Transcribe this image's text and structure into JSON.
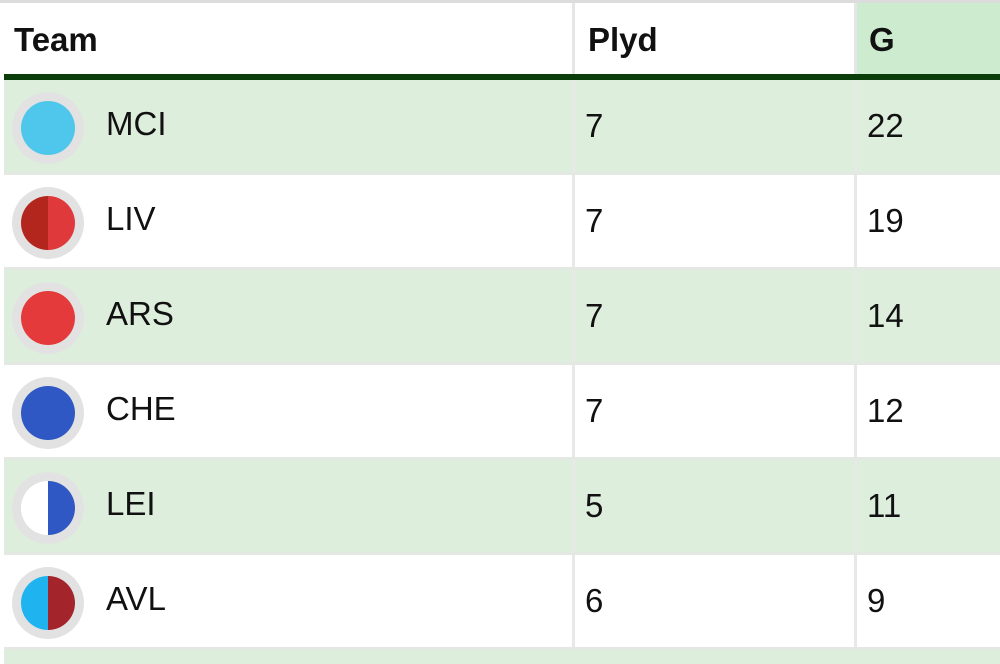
{
  "header": {
    "team": "Team",
    "played": "Plyd",
    "goals": "G"
  },
  "rows": [
    {
      "team": "MCI",
      "played": "7",
      "goals": "22",
      "crest_icon": "mci-crest-icon",
      "colors": [
        "#4fc6ec",
        "#4fc6ec"
      ]
    },
    {
      "team": "LIV",
      "played": "7",
      "goals": "19",
      "crest_icon": "liv-crest-icon",
      "colors": [
        "#b3261e",
        "#e0393b"
      ]
    },
    {
      "team": "ARS",
      "played": "7",
      "goals": "14",
      "crest_icon": "ars-crest-icon",
      "colors": [
        "#e53a3c",
        "#e53a3c"
      ]
    },
    {
      "team": "CHE",
      "played": "7",
      "goals": "12",
      "crest_icon": "che-crest-icon",
      "colors": [
        "#2f58c4",
        "#2f58c4"
      ]
    },
    {
      "team": "LEI",
      "played": "5",
      "goals": "11",
      "crest_icon": "lei-crest-icon",
      "colors": [
        "#ffffff",
        "#2f58c4"
      ]
    },
    {
      "team": "AVL",
      "played": "6",
      "goals": "9",
      "crest_icon": "avl-crest-icon",
      "colors": [
        "#1fb4f0",
        "#a3242a"
      ]
    }
  ],
  "theme": {
    "row_shade": "#deeedd",
    "header_goals_bg": "#cdebcf",
    "header_rule": "#0b3d0b"
  }
}
